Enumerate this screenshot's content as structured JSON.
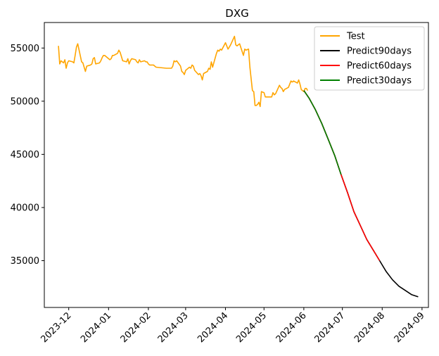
{
  "chart_data": {
    "type": "line",
    "title": "DXG",
    "xlabel": "",
    "ylabel": "",
    "x_ticks": [
      "2023-12",
      "2024-01",
      "2024-02",
      "2024-03",
      "2024-04",
      "2024-05",
      "2024-06",
      "2024-07",
      "2024-08",
      "2024-09"
    ],
    "y_ticks": [
      35000,
      40000,
      45000,
      50000,
      55000
    ],
    "xlim": [
      "2023-11-12",
      "2024-09-06"
    ],
    "ylim": [
      30600,
      57400
    ],
    "grid": false,
    "legend_position": "top-right",
    "series": [
      {
        "name": "Test",
        "color": "#ffa500",
        "points": [
          [
            "2023-11-23",
            55200
          ],
          [
            "2023-11-24",
            53500
          ],
          [
            "2023-11-25",
            53800
          ],
          [
            "2023-11-27",
            53600
          ],
          [
            "2023-11-28",
            53900
          ],
          [
            "2023-11-29",
            53100
          ],
          [
            "2023-11-30",
            53600
          ],
          [
            "2023-12-01",
            53800
          ],
          [
            "2023-12-04",
            53700
          ],
          [
            "2023-12-05",
            53600
          ],
          [
            "2023-12-06",
            54300
          ],
          [
            "2023-12-07",
            55100
          ],
          [
            "2023-12-08",
            55400
          ],
          [
            "2023-12-11",
            53700
          ],
          [
            "2023-12-12",
            53600
          ],
          [
            "2023-12-13",
            53200
          ],
          [
            "2023-12-14",
            52800
          ],
          [
            "2023-12-15",
            53300
          ],
          [
            "2023-12-18",
            53400
          ],
          [
            "2023-12-19",
            53500
          ],
          [
            "2023-12-20",
            54000
          ],
          [
            "2023-12-21",
            54100
          ],
          [
            "2023-12-22",
            53500
          ],
          [
            "2023-12-25",
            53600
          ],
          [
            "2023-12-26",
            53800
          ],
          [
            "2023-12-27",
            54100
          ],
          [
            "2023-12-28",
            54300
          ],
          [
            "2023-12-29",
            54300
          ],
          [
            "2024-01-02",
            53900
          ],
          [
            "2024-01-03",
            54000
          ],
          [
            "2024-01-04",
            54300
          ],
          [
            "2024-01-05",
            54300
          ],
          [
            "2024-01-08",
            54500
          ],
          [
            "2024-01-09",
            54800
          ],
          [
            "2024-01-10",
            54600
          ],
          [
            "2024-01-11",
            54200
          ],
          [
            "2024-01-12",
            53800
          ],
          [
            "2024-01-15",
            53700
          ],
          [
            "2024-01-16",
            54000
          ],
          [
            "2024-01-17",
            53500
          ],
          [
            "2024-01-18",
            53800
          ],
          [
            "2024-01-19",
            54000
          ],
          [
            "2024-01-22",
            53900
          ],
          [
            "2024-01-23",
            53700
          ],
          [
            "2024-01-24",
            53600
          ],
          [
            "2024-01-25",
            53900
          ],
          [
            "2024-01-26",
            53700
          ],
          [
            "2024-01-29",
            53800
          ],
          [
            "2024-01-30",
            53700
          ],
          [
            "2024-01-31",
            53700
          ],
          [
            "2024-02-01",
            53500
          ],
          [
            "2024-02-02",
            53400
          ],
          [
            "2024-02-05",
            53400
          ],
          [
            "2024-02-06",
            53300
          ],
          [
            "2024-02-07",
            53200
          ],
          [
            "2024-02-15",
            53100
          ],
          [
            "2024-02-16",
            53100
          ],
          [
            "2024-02-19",
            53100
          ],
          [
            "2024-02-20",
            53300
          ],
          [
            "2024-02-21",
            53800
          ],
          [
            "2024-02-22",
            53700
          ],
          [
            "2024-02-23",
            53800
          ],
          [
            "2024-02-26",
            53300
          ],
          [
            "2024-02-27",
            52800
          ],
          [
            "2024-02-28",
            52700
          ],
          [
            "2024-02-29",
            52500
          ],
          [
            "2024-03-01",
            52900
          ],
          [
            "2024-03-04",
            53200
          ],
          [
            "2024-03-05",
            53100
          ],
          [
            "2024-03-06",
            53400
          ],
          [
            "2024-03-07",
            53300
          ],
          [
            "2024-03-08",
            52900
          ],
          [
            "2024-03-11",
            52500
          ],
          [
            "2024-03-12",
            52600
          ],
          [
            "2024-03-13",
            52400
          ],
          [
            "2024-03-14",
            52000
          ],
          [
            "2024-03-15",
            52600
          ],
          [
            "2024-03-18",
            52800
          ],
          [
            "2024-03-19",
            53100
          ],
          [
            "2024-03-20",
            53000
          ],
          [
            "2024-03-21",
            53700
          ],
          [
            "2024-03-22",
            53200
          ],
          [
            "2024-03-25",
            54500
          ],
          [
            "2024-03-26",
            54800
          ],
          [
            "2024-03-27",
            54700
          ],
          [
            "2024-03-28",
            54900
          ],
          [
            "2024-03-29",
            54800
          ],
          [
            "2024-04-01",
            55500
          ],
          [
            "2024-04-02",
            55200
          ],
          [
            "2024-04-03",
            54900
          ],
          [
            "2024-04-04",
            55100
          ],
          [
            "2024-04-05",
            55300
          ],
          [
            "2024-04-08",
            56100
          ],
          [
            "2024-04-09",
            55300
          ],
          [
            "2024-04-10",
            55200
          ],
          [
            "2024-04-11",
            55300
          ],
          [
            "2024-04-12",
            55400
          ],
          [
            "2024-04-15",
            54300
          ],
          [
            "2024-04-16",
            54900
          ],
          [
            "2024-04-17",
            54800
          ],
          [
            "2024-04-19",
            54900
          ],
          [
            "2024-04-20",
            53200
          ],
          [
            "2024-04-22",
            51000
          ],
          [
            "2024-04-23",
            50900
          ],
          [
            "2024-04-24",
            49600
          ],
          [
            "2024-04-25",
            49600
          ],
          [
            "2024-04-26",
            49700
          ],
          [
            "2024-04-27",
            49900
          ],
          [
            "2024-04-28",
            49500
          ],
          [
            "2024-04-29",
            50900
          ],
          [
            "2024-05-01",
            50800
          ],
          [
            "2024-05-02",
            50400
          ],
          [
            "2024-05-03",
            50400
          ],
          [
            "2024-05-06",
            50400
          ],
          [
            "2024-05-07",
            50400
          ],
          [
            "2024-05-08",
            50800
          ],
          [
            "2024-05-09",
            50600
          ],
          [
            "2024-05-10",
            50700
          ],
          [
            "2024-05-13",
            51500
          ],
          [
            "2024-05-14",
            51300
          ],
          [
            "2024-05-15",
            51200
          ],
          [
            "2024-05-16",
            50900
          ],
          [
            "2024-05-17",
            51100
          ],
          [
            "2024-05-20",
            51300
          ],
          [
            "2024-05-21",
            51600
          ],
          [
            "2024-05-22",
            51900
          ],
          [
            "2024-05-23",
            51800
          ],
          [
            "2024-05-24",
            51900
          ],
          [
            "2024-05-27",
            51700
          ],
          [
            "2024-05-28",
            52000
          ],
          [
            "2024-05-29",
            51600
          ],
          [
            "2024-05-30",
            51100
          ],
          [
            "2024-05-31",
            51000
          ],
          [
            "2024-06-01",
            50900
          ],
          [
            "2024-06-02",
            51200
          ],
          [
            "2024-06-03",
            51200
          ],
          [
            "2024-06-04",
            51000
          ]
        ]
      },
      {
        "name": "Predict90days",
        "color": "#000000",
        "points": [
          [
            "2024-06-01",
            51000
          ],
          [
            "2024-06-05",
            50300
          ],
          [
            "2024-06-10",
            49200
          ],
          [
            "2024-06-15",
            47900
          ],
          [
            "2024-06-20",
            46400
          ],
          [
            "2024-06-25",
            44900
          ],
          [
            "2024-06-30",
            43100
          ],
          [
            "2024-07-05",
            41400
          ],
          [
            "2024-07-10",
            39600
          ],
          [
            "2024-07-15",
            38300
          ],
          [
            "2024-07-20",
            37000
          ],
          [
            "2024-07-25",
            36000
          ],
          [
            "2024-07-30",
            35000
          ],
          [
            "2024-08-04",
            34000
          ],
          [
            "2024-08-09",
            33200
          ],
          [
            "2024-08-14",
            32600
          ],
          [
            "2024-08-19",
            32200
          ],
          [
            "2024-08-24",
            31800
          ],
          [
            "2024-08-29",
            31600
          ]
        ]
      },
      {
        "name": "Predict60days",
        "color": "#ff0000",
        "points": [
          [
            "2024-06-01",
            51000
          ],
          [
            "2024-06-05",
            50300
          ],
          [
            "2024-06-10",
            49200
          ],
          [
            "2024-06-15",
            47900
          ],
          [
            "2024-06-20",
            46400
          ],
          [
            "2024-06-25",
            44900
          ],
          [
            "2024-06-30",
            43100
          ],
          [
            "2024-07-05",
            41400
          ],
          [
            "2024-07-10",
            39600
          ],
          [
            "2024-07-15",
            38300
          ],
          [
            "2024-07-20",
            37000
          ],
          [
            "2024-07-25",
            36000
          ],
          [
            "2024-07-30",
            35000
          ]
        ]
      },
      {
        "name": "Predict30days",
        "color": "#008000",
        "points": [
          [
            "2024-06-01",
            51000
          ],
          [
            "2024-06-05",
            50300
          ],
          [
            "2024-06-10",
            49200
          ],
          [
            "2024-06-15",
            47900
          ],
          [
            "2024-06-20",
            46400
          ],
          [
            "2024-06-25",
            44900
          ],
          [
            "2024-06-30",
            43100
          ]
        ]
      }
    ]
  }
}
